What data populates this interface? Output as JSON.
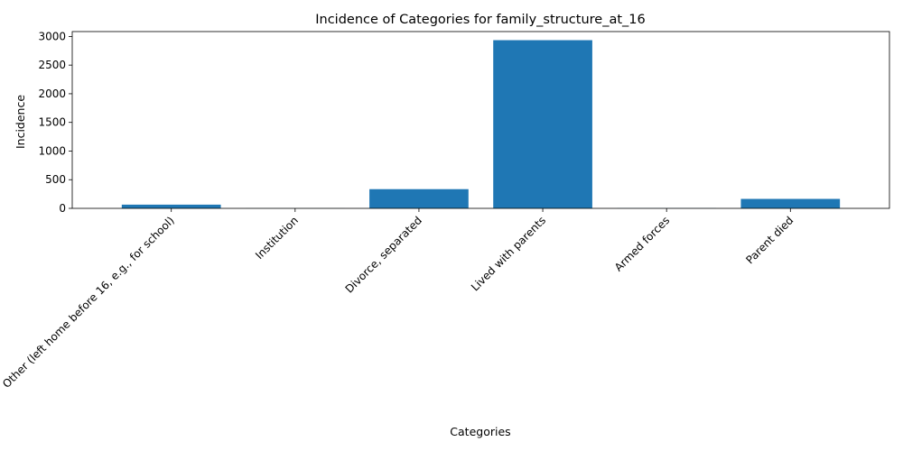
{
  "chart_data": {
    "type": "bar",
    "title": "Incidence of Categories for family_structure_at_16",
    "xlabel": "Categories",
    "ylabel": "Incidence",
    "categories": [
      "Other (left home before 16, e.g., for school)",
      "Institution",
      "Divorce, separated",
      "Lived with parents",
      "Armed forces",
      "Parent died"
    ],
    "values": [
      65,
      2,
      335,
      2935,
      3,
      165
    ],
    "ylim": [
      0,
      3085
    ],
    "yticks": [
      0,
      500,
      1000,
      1500,
      2000,
      2500,
      3000
    ],
    "grid": false,
    "legend": "none",
    "bar_color": "#1f77b4"
  }
}
